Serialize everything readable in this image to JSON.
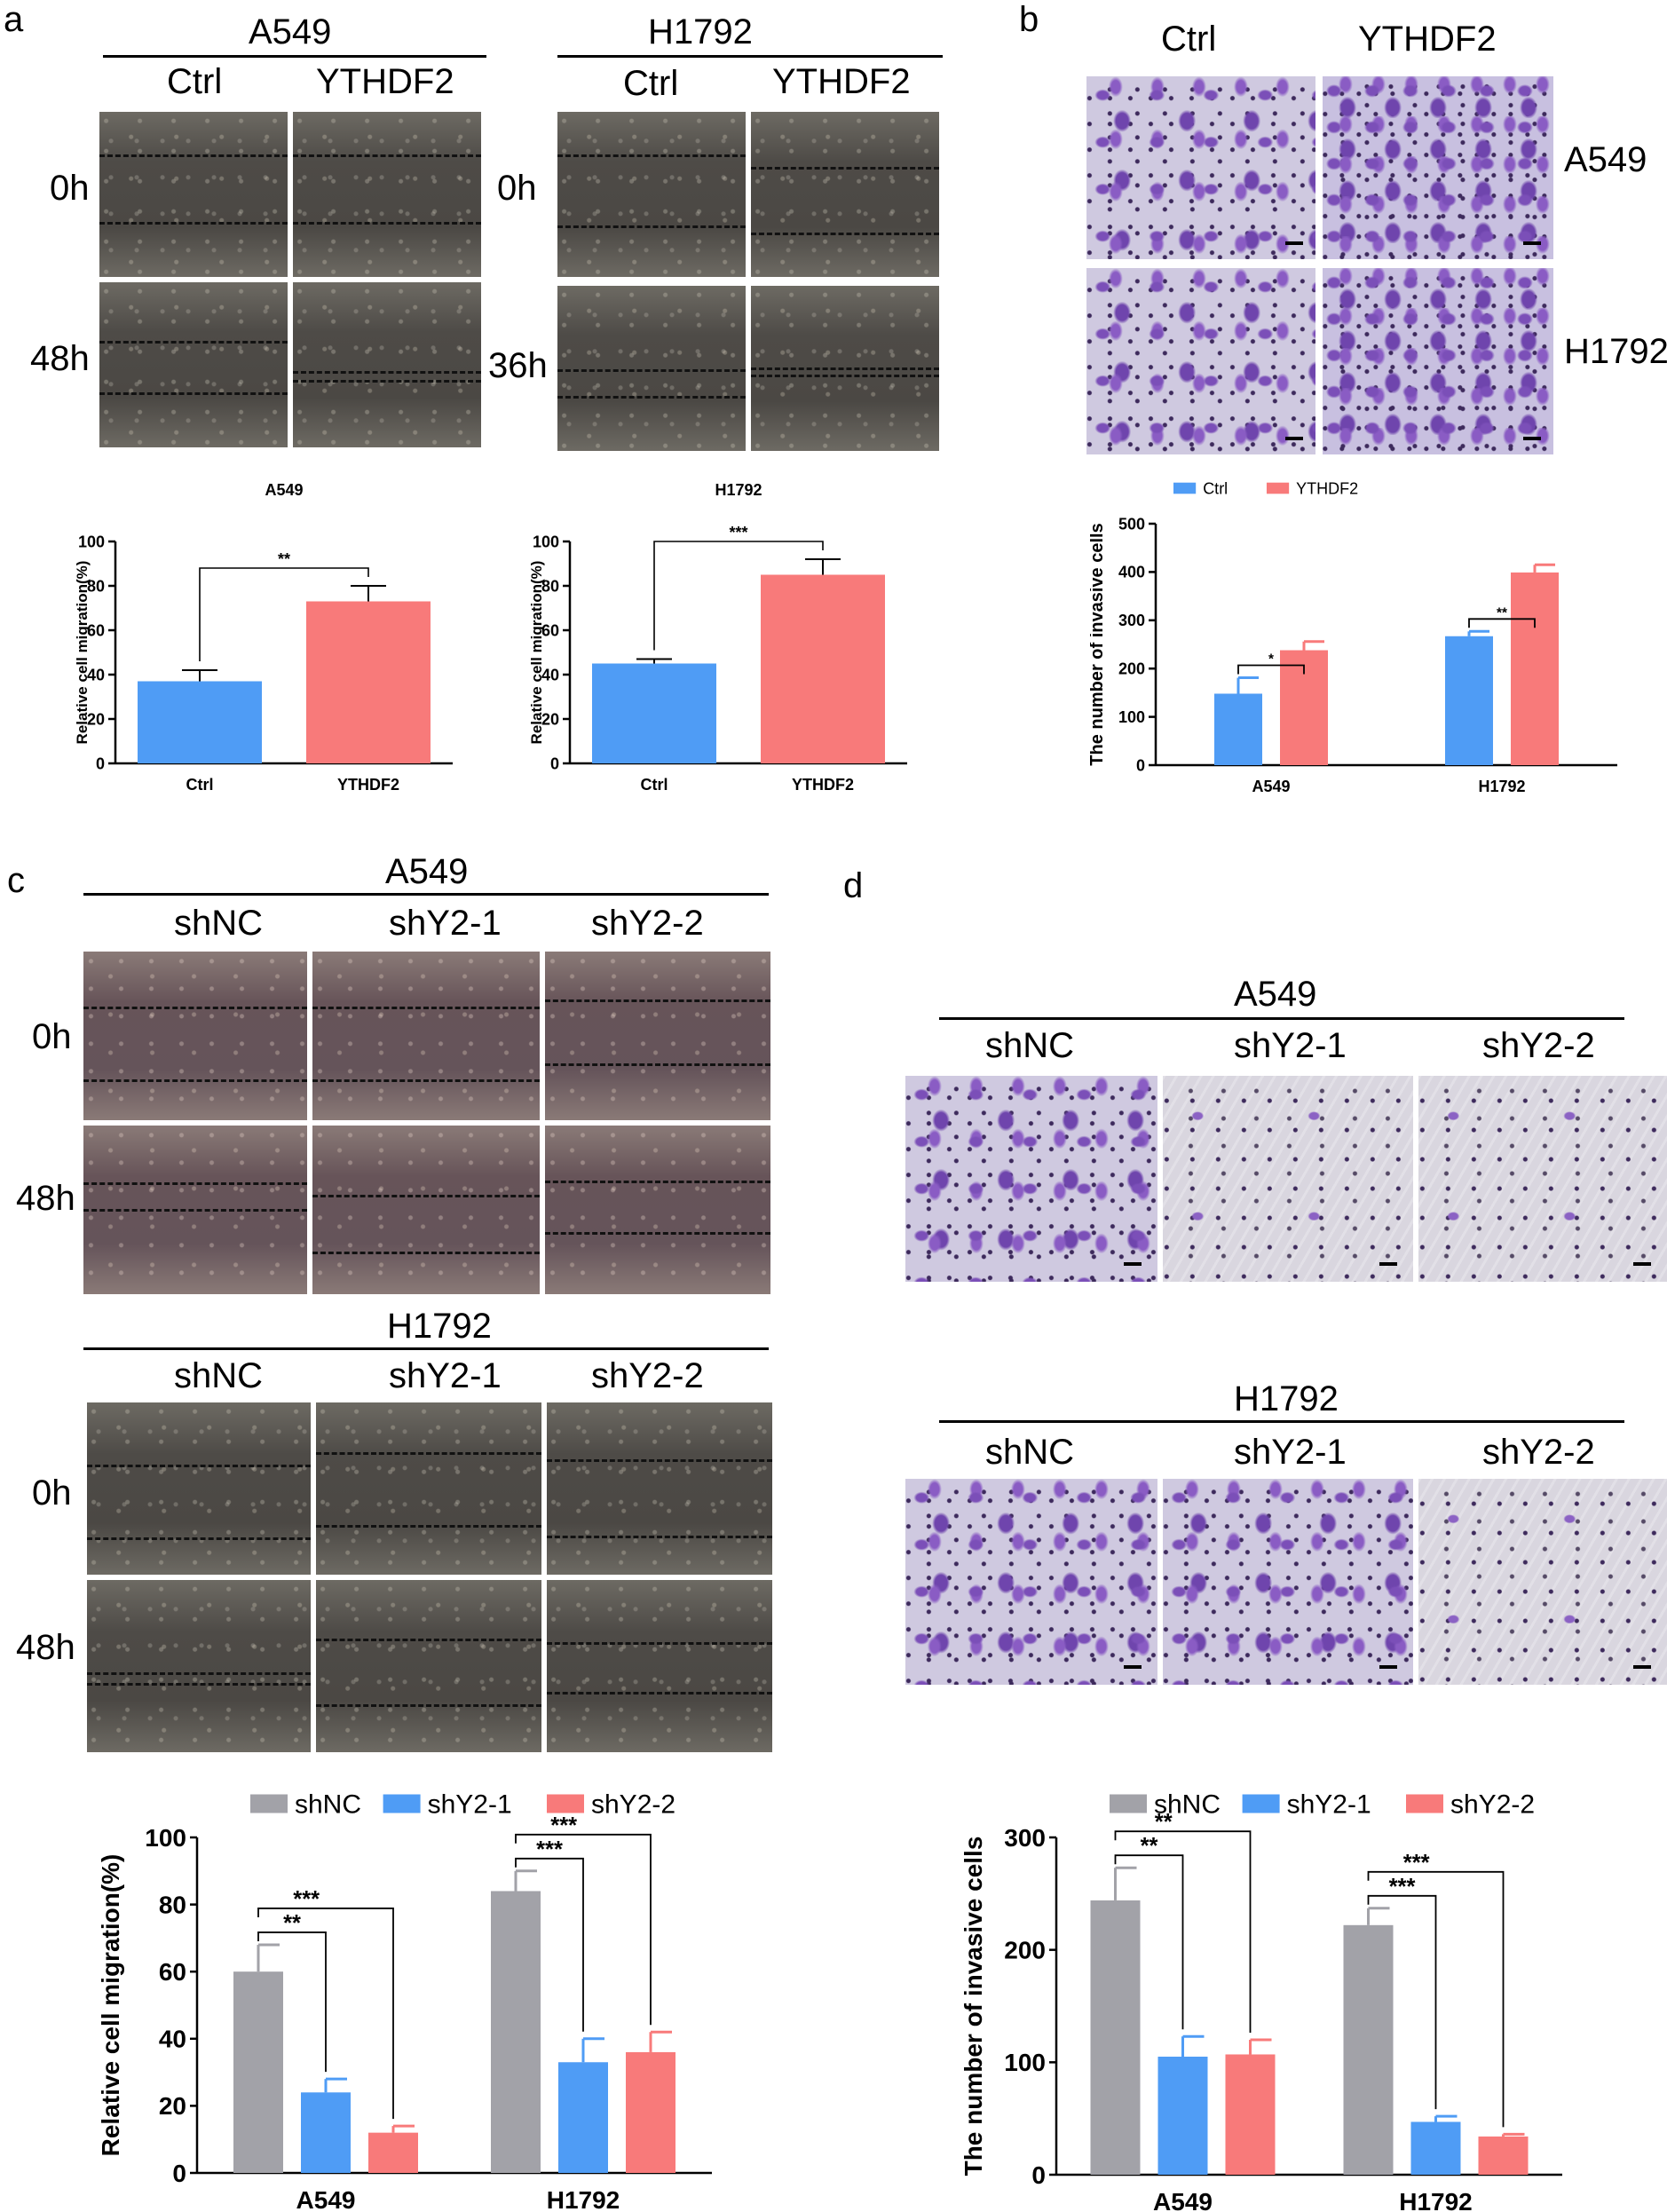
{
  "panels": {
    "a": {
      "letter": "a",
      "lines": [
        "A549",
        "H1792"
      ],
      "conditions": [
        "Ctrl",
        "YTHDF2"
      ],
      "timepoints_left": [
        "0h",
        "48h"
      ],
      "timepoints_right": [
        "0h",
        "36h"
      ]
    },
    "b": {
      "letter": "b",
      "conditions": [
        "Ctrl",
        "YTHDF2"
      ],
      "lines": [
        "A549",
        "H1792"
      ]
    },
    "c": {
      "letter": "c",
      "lines": [
        "A549",
        "H1792"
      ],
      "conditions": [
        "shNC",
        "shY2-1",
        "shY2-2"
      ],
      "timepoints": [
        "0h",
        "48h"
      ]
    },
    "d": {
      "letter": "d",
      "lines": [
        "A549",
        "H1792"
      ],
      "conditions": [
        "shNC",
        "shY2-1",
        "shY2-2"
      ]
    }
  },
  "chart_data": [
    {
      "id": "a-A549",
      "type": "bar",
      "title": "A549",
      "ylabel": "Relative cell migration(%)",
      "categories": [
        "Ctrl",
        "YTHDF2"
      ],
      "values": [
        37,
        73
      ],
      "errors": [
        5,
        7
      ],
      "colors": [
        "#4f9cf5",
        "#f87a7a"
      ],
      "ylim": [
        0,
        100
      ],
      "yticks": [
        "0",
        "20",
        "40",
        "60",
        "80",
        "100"
      ],
      "sig": [
        {
          "from": 0,
          "to": 1,
          "label": "**"
        }
      ]
    },
    {
      "id": "a-H1792",
      "type": "bar",
      "title": "H1792",
      "ylabel": "Relative cell migration(%)",
      "categories": [
        "Ctrl",
        "YTHDF2"
      ],
      "values": [
        45,
        85
      ],
      "errors": [
        2,
        7
      ],
      "colors": [
        "#4f9cf5",
        "#f87a7a"
      ],
      "ylim": [
        0,
        100
      ],
      "yticks": [
        "0",
        "20",
        "40",
        "60",
        "80",
        "100"
      ],
      "sig": [
        {
          "from": 0,
          "to": 1,
          "label": "***"
        }
      ]
    },
    {
      "id": "b",
      "type": "bar",
      "ylabel": "The number of invasive cells",
      "categories": [
        "A549",
        "H1792"
      ],
      "series": [
        {
          "name": "Ctrl",
          "color": "#4f9cf5",
          "values": [
            148,
            267
          ],
          "errors": [
            33,
            10
          ]
        },
        {
          "name": "YTHDF2",
          "color": "#f87a7a",
          "values": [
            238,
            399
          ],
          "errors": [
            18,
            16
          ]
        }
      ],
      "ylim": [
        0,
        500
      ],
      "yticks": [
        "0",
        "100",
        "200",
        "300",
        "400",
        "500"
      ],
      "sig": [
        {
          "group": 0,
          "from": 0,
          "to": 1,
          "label": "*"
        },
        {
          "group": 1,
          "from": 0,
          "to": 1,
          "label": "**"
        }
      ],
      "legend": "top"
    },
    {
      "id": "c",
      "type": "bar",
      "ylabel": "Relative cell migration(%)",
      "categories": [
        "A549",
        "H1792"
      ],
      "series": [
        {
          "name": "shNC",
          "color": "#a2a2a8",
          "values": [
            60,
            84
          ],
          "errors": [
            8,
            6
          ]
        },
        {
          "name": "shY2-1",
          "color": "#4f9cf5",
          "values": [
            24,
            33
          ],
          "errors": [
            4,
            7
          ]
        },
        {
          "name": "shY2-2",
          "color": "#f87a7a",
          "values": [
            12,
            36
          ],
          "errors": [
            2,
            6
          ]
        }
      ],
      "ylim": [
        0,
        100
      ],
      "yticks": [
        "0",
        "20",
        "40",
        "60",
        "80",
        "100"
      ],
      "sig": [
        {
          "group": 0,
          "from": 0,
          "to": 1,
          "label": "**"
        },
        {
          "group": 0,
          "from": 0,
          "to": 2,
          "label": "***"
        },
        {
          "group": 1,
          "from": 0,
          "to": 1,
          "label": "***"
        },
        {
          "group": 1,
          "from": 0,
          "to": 2,
          "label": "***"
        }
      ],
      "legend": "top"
    },
    {
      "id": "d",
      "type": "bar",
      "ylabel": "The number of invasive cells",
      "categories": [
        "A549",
        "H1792"
      ],
      "series": [
        {
          "name": "shNC",
          "color": "#a2a2a8",
          "values": [
            244,
            222
          ],
          "errors": [
            29,
            15
          ]
        },
        {
          "name": "shY2-1",
          "color": "#4f9cf5",
          "values": [
            105,
            47
          ],
          "errors": [
            18,
            5
          ]
        },
        {
          "name": "shY2-2",
          "color": "#f87a7a",
          "values": [
            107,
            34
          ],
          "errors": [
            13,
            2
          ]
        }
      ],
      "ylim": [
        0,
        300
      ],
      "yticks": [
        "0",
        "100",
        "200",
        "300"
      ],
      "sig": [
        {
          "group": 0,
          "from": 0,
          "to": 1,
          "label": "**"
        },
        {
          "group": 0,
          "from": 0,
          "to": 2,
          "label": "**"
        },
        {
          "group": 1,
          "from": 0,
          "to": 1,
          "label": "***"
        },
        {
          "group": 1,
          "from": 0,
          "to": 2,
          "label": "***"
        }
      ],
      "legend": "top"
    }
  ]
}
